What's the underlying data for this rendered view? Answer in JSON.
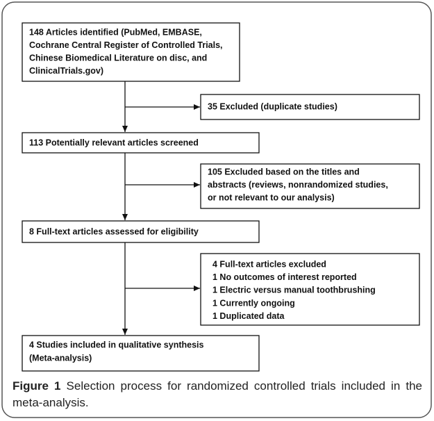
{
  "boxes": [
    {
      "lines": [
        "148 Articles identified (PubMed, EMBASE,",
        "Cochrane Central Register of Controlled Trials,",
        "Chinese Biomedical Literature on disc, and",
        "ClinicalTrials.gov)"
      ]
    },
    {
      "lines": [
        "35 Excluded (duplicate studies)"
      ]
    },
    {
      "lines": [
        "113 Potentially relevant articles screened"
      ]
    },
    {
      "lines": [
        "105 Excluded based on the titles and",
        "abstracts (reviews, nonrandomized studies,",
        "or not relevant to our analysis)"
      ]
    },
    {
      "lines": [
        "8 Full-text articles assessed for eligibility"
      ]
    },
    {
      "lines": [
        "4 Full-text articles excluded",
        "1 No outcomes of interest reported",
        "1 Electric versus manual toothbrushing",
        "1 Currently ongoing",
        "1 Duplicated data"
      ]
    },
    {
      "lines": [
        "4 Studies included in qualitative synthesis",
        "(Meta-analysis)"
      ]
    }
  ],
  "caption": {
    "label": "Figure 1",
    "text": "Selection process for randomized controlled trials included in the meta-analysis."
  }
}
